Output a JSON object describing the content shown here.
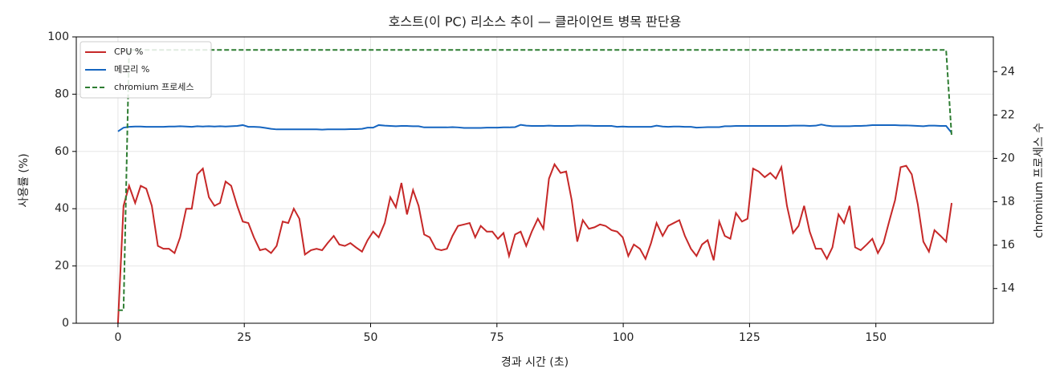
{
  "chart_data": {
    "type": "line",
    "title": "호스트(이 PC) 리소스 추이 — 클라이언트 병목 판단용",
    "xlabel": "경과 시간 (초)",
    "ylabel": "사용률 (%)",
    "y2label": "chromium 프로세스 수",
    "xlim": [
      -8.25,
      173.25
    ],
    "xticks": [
      0,
      25,
      50,
      75,
      100,
      125,
      150
    ],
    "ylim": [
      0,
      100
    ],
    "yticks": [
      0,
      20,
      40,
      60,
      80,
      100
    ],
    "y2lim": [
      12.4,
      25.6
    ],
    "y2ticks": [
      14,
      16,
      18,
      20,
      22,
      24
    ],
    "grid": true,
    "legend": "upper left",
    "x": [
      0,
      1.1,
      2.2,
      3.4,
      4.5,
      5.6,
      6.7,
      7.9,
      9.0,
      10.1,
      11.2,
      12.3,
      13.5,
      14.6,
      15.7,
      16.8,
      18.0,
      19.1,
      20.2,
      21.3,
      22.4,
      23.6,
      24.7,
      25.8,
      26.9,
      28.1,
      29.2,
      30.3,
      31.4,
      32.6,
      33.7,
      34.8,
      35.9,
      37.0,
      38.2,
      39.3,
      40.4,
      41.5,
      42.7,
      43.8,
      44.9,
      46.0,
      47.1,
      48.3,
      49.4,
      50.5,
      51.6,
      52.8,
      53.9,
      55.0,
      56.1,
      57.2,
      58.4,
      59.5,
      60.6,
      61.7,
      62.9,
      64.0,
      65.1,
      66.2,
      67.3,
      68.5,
      69.6,
      70.7,
      71.8,
      73.0,
      74.1,
      75.2,
      76.3,
      77.4,
      78.6,
      79.7,
      80.8,
      81.9,
      83.1,
      84.2,
      85.3,
      86.4,
      87.6,
      88.7,
      89.8,
      90.9,
      92.0,
      93.2,
      94.3,
      95.4,
      96.5,
      97.7,
      98.8,
      99.9,
      101.0,
      102.1,
      103.3,
      104.4,
      105.5,
      106.6,
      107.8,
      108.9,
      110.0,
      111.1,
      112.2,
      113.4,
      114.5,
      115.6,
      116.7,
      117.9,
      119.0,
      120.1,
      121.2,
      122.3,
      123.5,
      124.6,
      125.7,
      126.8,
      128.0,
      129.1,
      130.2,
      131.3,
      132.4,
      133.6,
      134.7,
      135.8,
      136.9,
      138.1,
      139.2,
      140.3,
      141.4,
      142.6,
      143.7,
      144.8,
      145.9,
      147.0,
      148.2,
      149.3,
      150.4,
      151.5,
      152.7,
      153.8,
      154.9,
      156.0,
      157.1,
      158.3,
      159.4,
      160.5,
      161.6,
      162.8,
      163.9,
      165.0
    ],
    "series": [
      {
        "name": "CPU %",
        "color": "#c62828",
        "dash": false,
        "values": [
          0,
          41,
          48,
          42,
          48,
          47,
          41,
          27,
          26,
          26,
          24.5,
          30,
          40,
          40,
          52,
          54,
          44,
          41,
          42,
          49.5,
          48,
          41,
          35.5,
          35,
          30,
          25.5,
          26,
          24.5,
          27,
          35.5,
          35,
          40,
          36.5,
          24,
          25.5,
          26,
          25.5,
          28,
          30.5,
          27.5,
          27,
          28,
          26.5,
          25,
          29,
          32,
          30,
          35,
          44,
          40.5,
          49,
          38,
          46.5,
          41,
          31,
          30,
          26,
          25.5,
          26,
          30.5,
          34,
          34.5,
          35,
          30,
          34,
          32,
          32,
          29.5,
          31.5,
          23.5,
          31,
          32,
          27,
          32,
          36.5,
          33,
          50.5,
          55.5,
          52.5,
          53,
          43,
          28.5,
          36,
          33,
          33.5,
          34.5,
          34,
          32.5,
          32,
          30,
          23.5,
          27.5,
          26,
          22.5,
          28,
          35,
          30.5,
          34,
          35,
          36,
          30.5,
          26,
          23.5,
          27.5,
          29,
          22,
          35.5,
          30.5,
          29.5,
          38.5,
          35.5,
          36.5,
          54,
          53,
          51,
          52.5,
          50.5,
          54.5,
          41,
          31.5,
          34,
          41,
          32,
          26,
          26,
          22.5,
          26.5,
          38,
          35,
          41,
          26.5,
          25.5,
          27.5,
          29.5,
          24.5,
          28,
          36,
          43,
          54.5,
          55,
          52,
          41.5,
          28.5,
          25,
          32.5,
          30.5,
          28.5,
          42
        ]
      },
      {
        "name": "메모리 %",
        "color": "#1565c0",
        "dash": false,
        "values": [
          67,
          68.3,
          68.6,
          68.7,
          68.7,
          68.6,
          68.6,
          68.6,
          68.6,
          68.7,
          68.7,
          68.8,
          68.7,
          68.6,
          68.8,
          68.7,
          68.8,
          68.7,
          68.8,
          68.7,
          68.8,
          68.9,
          69.2,
          68.6,
          68.6,
          68.5,
          68.2,
          67.9,
          67.7,
          67.7,
          67.7,
          67.7,
          67.7,
          67.7,
          67.7,
          67.7,
          67.6,
          67.7,
          67.7,
          67.7,
          67.7,
          67.8,
          67.8,
          67.9,
          68.3,
          68.3,
          69.2,
          69.0,
          68.9,
          68.8,
          68.9,
          68.9,
          68.8,
          68.8,
          68.4,
          68.4,
          68.4,
          68.4,
          68.4,
          68.5,
          68.4,
          68.2,
          68.2,
          68.2,
          68.2,
          68.3,
          68.3,
          68.3,
          68.4,
          68.4,
          68.5,
          69.3,
          69.0,
          68.9,
          68.9,
          68.9,
          69.0,
          68.9,
          68.9,
          68.9,
          68.9,
          69.0,
          69.0,
          69.0,
          68.9,
          68.9,
          68.9,
          68.9,
          68.6,
          68.7,
          68.6,
          68.6,
          68.6,
          68.6,
          68.6,
          69.0,
          68.7,
          68.6,
          68.7,
          68.7,
          68.6,
          68.6,
          68.3,
          68.4,
          68.5,
          68.5,
          68.5,
          68.8,
          68.8,
          68.9,
          68.9,
          68.9,
          68.9,
          68.9,
          68.9,
          68.9,
          68.9,
          68.9,
          68.9,
          69.0,
          69.0,
          69.0,
          68.9,
          69.0,
          69.4,
          69.0,
          68.8,
          68.8,
          68.8,
          68.8,
          68.9,
          68.9,
          69.0,
          69.2,
          69.2,
          69.2,
          69.2,
          69.2,
          69.1,
          69.1,
          69.0,
          68.9,
          68.8,
          69.0,
          69.0,
          68.9,
          68.9,
          66.5
        ]
      },
      {
        "name": "chromium 프로세스",
        "color": "#2e7d32",
        "dash": true,
        "axis": "y2",
        "values": [
          13,
          13,
          25,
          25,
          25,
          25,
          25,
          25,
          25,
          25,
          25,
          25,
          25,
          25,
          25,
          25,
          25,
          25,
          25,
          25,
          25,
          25,
          25,
          25,
          25,
          25,
          25,
          25,
          25,
          25,
          25,
          25,
          25,
          25,
          25,
          25,
          25,
          25,
          25,
          25,
          25,
          25,
          25,
          25,
          25,
          25,
          25,
          25,
          25,
          25,
          25,
          25,
          25,
          25,
          25,
          25,
          25,
          25,
          25,
          25,
          25,
          25,
          25,
          25,
          25,
          25,
          25,
          25,
          25,
          25,
          25,
          25,
          25,
          25,
          25,
          25,
          25,
          25,
          25,
          25,
          25,
          25,
          25,
          25,
          25,
          25,
          25,
          25,
          25,
          25,
          25,
          25,
          25,
          25,
          25,
          25,
          25,
          25,
          25,
          25,
          25,
          25,
          25,
          25,
          25,
          25,
          25,
          25,
          25,
          25,
          25,
          25,
          25,
          25,
          25,
          25,
          25,
          25,
          25,
          25,
          25,
          25,
          25,
          25,
          25,
          25,
          25,
          25,
          25,
          25,
          25,
          25,
          25,
          25,
          25,
          25,
          25,
          25,
          25,
          25,
          25,
          25,
          25,
          25,
          25,
          25,
          25,
          21
        ]
      }
    ]
  }
}
